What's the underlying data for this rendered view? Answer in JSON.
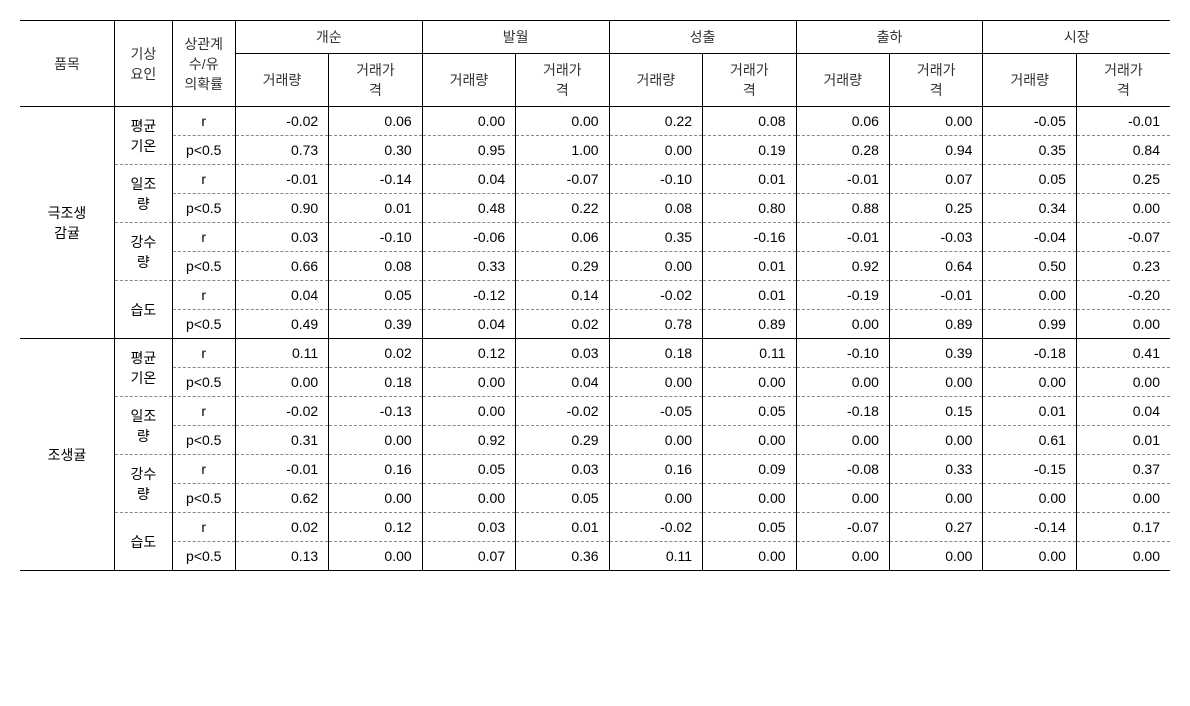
{
  "headers": {
    "item": "품목",
    "weatherFactor": "기상\n요인",
    "corrCoef": "상관계\n수/유\n의확률",
    "groups": [
      "개순",
      "발월",
      "성출",
      "출하",
      "시장"
    ],
    "sub1": "거래량",
    "sub2": "거래가\n격"
  },
  "stat": {
    "r": "r",
    "p": "p<0.5"
  },
  "items": [
    {
      "name": "극조생\n감귤",
      "factors": [
        {
          "name": "평균\n기온",
          "r": [
            "-0.02",
            "0.06",
            "0.00",
            "0.00",
            "0.22",
            "0.08",
            "0.06",
            "0.00",
            "-0.05",
            "-0.01"
          ],
          "p": [
            "0.73",
            "0.30",
            "0.95",
            "1.00",
            "0.00",
            "0.19",
            "0.28",
            "0.94",
            "0.35",
            "0.84"
          ]
        },
        {
          "name": "일조\n량",
          "r": [
            "-0.01",
            "-0.14",
            "0.04",
            "-0.07",
            "-0.10",
            "0.01",
            "-0.01",
            "0.07",
            "0.05",
            "0.25"
          ],
          "p": [
            "0.90",
            "0.01",
            "0.48",
            "0.22",
            "0.08",
            "0.80",
            "0.88",
            "0.25",
            "0.34",
            "0.00"
          ]
        },
        {
          "name": "강수\n량",
          "r": [
            "0.03",
            "-0.10",
            "-0.06",
            "0.06",
            "0.35",
            "-0.16",
            "-0.01",
            "-0.03",
            "-0.04",
            "-0.07"
          ],
          "p": [
            "0.66",
            "0.08",
            "0.33",
            "0.29",
            "0.00",
            "0.01",
            "0.92",
            "0.64",
            "0.50",
            "0.23"
          ]
        },
        {
          "name": "습도",
          "r": [
            "0.04",
            "0.05",
            "-0.12",
            "0.14",
            "-0.02",
            "0.01",
            "-0.19",
            "-0.01",
            "0.00",
            "-0.20"
          ],
          "p": [
            "0.49",
            "0.39",
            "0.04",
            "0.02",
            "0.78",
            "0.89",
            "0.00",
            "0.89",
            "0.99",
            "0.00"
          ]
        }
      ]
    },
    {
      "name": "조생귤",
      "factors": [
        {
          "name": "평균\n기온",
          "r": [
            "0.11",
            "0.02",
            "0.12",
            "0.03",
            "0.18",
            "0.11",
            "-0.10",
            "0.39",
            "-0.18",
            "0.41"
          ],
          "p": [
            "0.00",
            "0.18",
            "0.00",
            "0.04",
            "0.00",
            "0.00",
            "0.00",
            "0.00",
            "0.00",
            "0.00"
          ]
        },
        {
          "name": "일조\n량",
          "r": [
            "-0.02",
            "-0.13",
            "0.00",
            "-0.02",
            "-0.05",
            "0.05",
            "-0.18",
            "0.15",
            "0.01",
            "0.04"
          ],
          "p": [
            "0.31",
            "0.00",
            "0.92",
            "0.29",
            "0.00",
            "0.00",
            "0.00",
            "0.00",
            "0.61",
            "0.01"
          ]
        },
        {
          "name": "강수\n량",
          "r": [
            "-0.01",
            "0.16",
            "0.05",
            "0.03",
            "0.16",
            "0.09",
            "-0.08",
            "0.33",
            "-0.15",
            "0.37"
          ],
          "p": [
            "0.62",
            "0.00",
            "0.00",
            "0.05",
            "0.00",
            "0.00",
            "0.00",
            "0.00",
            "0.00",
            "0.00"
          ]
        },
        {
          "name": "습도",
          "r": [
            "0.02",
            "0.12",
            "0.03",
            "0.01",
            "-0.02",
            "0.05",
            "-0.07",
            "0.27",
            "-0.14",
            "0.17"
          ],
          "p": [
            "0.13",
            "0.00",
            "0.07",
            "0.36",
            "0.11",
            "0.00",
            "0.00",
            "0.00",
            "0.00",
            "0.00"
          ]
        }
      ]
    }
  ]
}
